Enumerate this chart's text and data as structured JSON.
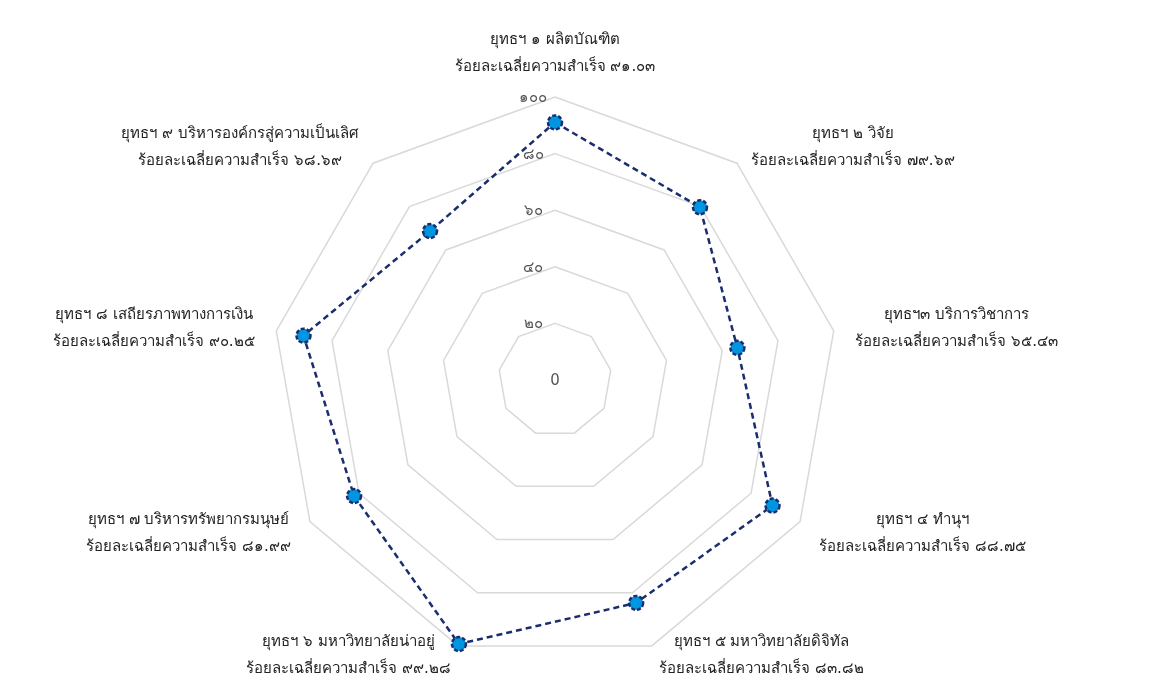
{
  "chart_data": {
    "type": "radar",
    "categories": [
      "ยุทธฯ ๑ ผลิตบัณฑิต\nร้อยละเฉลี่ยความสำเร็จ ๙๑.๐๓",
      "ยุทธฯ ๒ วิจัย\nร้อยละเฉลี่ยความสำเร็จ ๗๙.๖๙",
      "ยุทธฯ๓ บริการวิชาการ\nร้อยละเฉลี่ยความสำเร็จ ๖๕.๔๓",
      "ยุทธฯ ๔ ทำนุฯ\nร้อยละเฉลี่ยความสำเร็จ ๘๘.๗๕",
      "ยุทธฯ ๕ มหาวิทยาลัยดิจิทัล\nร้อยละเฉลี่ยความสำเร็จ ๘๓.๘๒",
      "ยุทธฯ ๖ มหาวิทยาลัยน่าอยู่\nร้อยละเฉลี่ยความสำเร็จ ๙๙.๒๘",
      "ยุทธฯ ๗ บริหารทรัพยากรมนุษย์\nร้อยละเฉลี่ยความสำเร็จ ๘๑.๙๙",
      "ยุทธฯ ๘ เสถียรภาพทางการเงิน\nร้อยละเฉลี่ยความสำเร็จ ๙๐.๒๕",
      "ยุทธฯ ๙ บริหารองค์กรสู่ความเป็นเลิศ\nร้อยละเฉลี่ยความสำเร็จ ๖๘.๖๙"
    ],
    "series": [
      {
        "color": "#1a2e6e",
        "colors": [
          "#0095e0",
          "#0095e0",
          "#0095e0",
          "#0095e0",
          "#0095e0",
          "#0095e0",
          "#0095e0",
          "#0095e0",
          "#0095e0"
        ],
        "values": [
          91.03,
          79.69,
          65.43,
          88.75,
          83.82,
          99.28,
          81.99,
          90.25,
          68.69
        ]
      }
    ],
    "ylim": [
      0,
      100
    ],
    "yticks": [
      {
        "value": 0,
        "label": "0"
      },
      {
        "value": 20,
        "label": "๒๐"
      },
      {
        "value": 40,
        "label": "๔๐"
      },
      {
        "value": 60,
        "label": "๖๐"
      },
      {
        "value": 80,
        "label": "๘๐"
      },
      {
        "value": 100,
        "label": "๑๐๐"
      }
    ],
    "grid": true,
    "marker": "circle",
    "line_style": "dashed"
  }
}
